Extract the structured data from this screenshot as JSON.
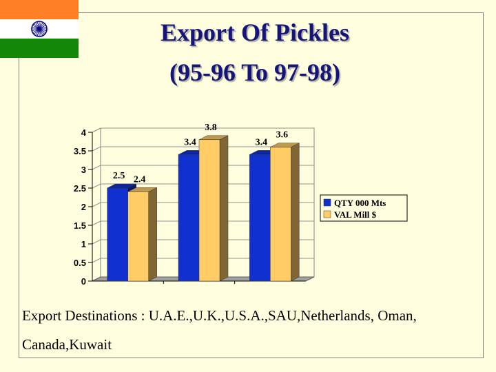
{
  "slide": {
    "title_line1": "Export Of Pickles",
    "title_line2": "(95-96 To 97-98)",
    "footer_line1": "Export Destinations : U.A.E.,U.K.,U.S.A.,SAU,Netherlands, Oman,",
    "footer_line2": "Canada,Kuwait"
  },
  "colors": {
    "background": "#FFFFE0",
    "title": "#14147A",
    "flag_saffron": "#FF7F27",
    "flag_white": "#FFFFFF",
    "flag_green": "#138808",
    "chakra": "#000080"
  },
  "icons": {
    "flag": "indian-flag-icon"
  },
  "chart_data": {
    "type": "bar",
    "style": "3d-clustered",
    "categories": [
      "",
      "",
      ""
    ],
    "series": [
      {
        "name": "QTY 000 Mts",
        "values": [
          2.5,
          3.4,
          3.4
        ],
        "color": "#1030D0"
      },
      {
        "name": "VAL Mill $",
        "values": [
          2.4,
          3.8,
          3.6
        ],
        "color": "#FFCC66"
      }
    ],
    "ylim": [
      0,
      4
    ],
    "yticks": [
      "0",
      "0.5",
      "1",
      "1.5",
      "2",
      "2.5",
      "3",
      "3.5",
      "4"
    ],
    "data_labels": [
      [
        "2.5",
        "3.4",
        "3.4"
      ],
      [
        "2.4",
        "3.8",
        "3.6"
      ]
    ],
    "legend_position": "right",
    "grid": true
  }
}
